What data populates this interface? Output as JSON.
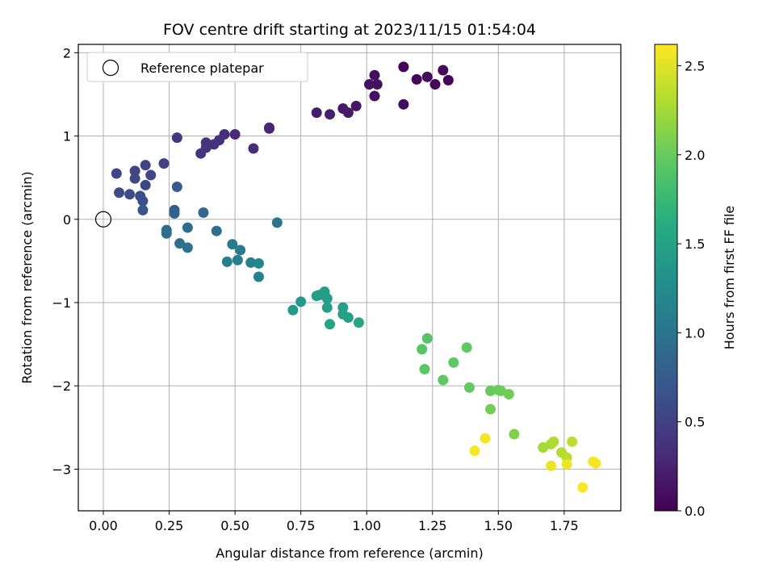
{
  "chart_data": {
    "type": "scatter",
    "title": "FOV centre drift starting at 2023/11/15 01:54:04",
    "xlabel": "Angular distance from reference (arcmin)",
    "ylabel": "Rotation from reference (arcmin)",
    "xlim": [
      -0.095,
      1.965
    ],
    "ylim": [
      -3.5,
      2.1
    ],
    "x_ticks": [
      "0.00",
      "0.25",
      "0.50",
      "0.75",
      "1.00",
      "1.25",
      "1.50",
      "1.75"
    ],
    "x_tick_values": [
      0,
      0.25,
      0.5,
      0.75,
      1.0,
      1.25,
      1.5,
      1.75
    ],
    "y_ticks": [
      "−3",
      "−2",
      "−1",
      "0",
      "1",
      "2"
    ],
    "y_tick_values": [
      -3,
      -2,
      -1,
      0,
      1,
      2
    ],
    "grid": true,
    "legend": {
      "position": "top-left",
      "label": "Reference platepar"
    },
    "reference_point": {
      "x": 0,
      "y": 0
    },
    "colorbar": {
      "label": "Hours from first FF file",
      "colormap": "viridis",
      "range": [
        0,
        2.62
      ],
      "ticks": [
        "0.0",
        "0.5",
        "1.0",
        "1.5",
        "2.0",
        "2.5"
      ],
      "tick_values": [
        0,
        0.5,
        1.0,
        1.5,
        2.0,
        2.5
      ]
    },
    "points": [
      {
        "x": 1.14,
        "y": 1.83,
        "c": 0.03
      },
      {
        "x": 1.19,
        "y": 1.68,
        "c": 0.06
      },
      {
        "x": 1.23,
        "y": 1.71,
        "c": 0.08
      },
      {
        "x": 1.26,
        "y": 1.62,
        "c": 0.05
      },
      {
        "x": 1.29,
        "y": 1.79,
        "c": 0.07
      },
      {
        "x": 1.31,
        "y": 1.67,
        "c": 0.04
      },
      {
        "x": 1.03,
        "y": 1.73,
        "c": 0.1
      },
      {
        "x": 1.01,
        "y": 1.62,
        "c": 0.12
      },
      {
        "x": 1.04,
        "y": 1.62,
        "c": 0.11
      },
      {
        "x": 1.03,
        "y": 1.48,
        "c": 0.13
      },
      {
        "x": 1.14,
        "y": 1.38,
        "c": 0.09
      },
      {
        "x": 0.96,
        "y": 1.36,
        "c": 0.15
      },
      {
        "x": 0.91,
        "y": 1.33,
        "c": 0.17
      },
      {
        "x": 0.93,
        "y": 1.28,
        "c": 0.18
      },
      {
        "x": 0.81,
        "y": 1.28,
        "c": 0.2
      },
      {
        "x": 0.86,
        "y": 1.26,
        "c": 0.22
      },
      {
        "x": 0.63,
        "y": 1.09,
        "c": 0.27
      },
      {
        "x": 0.63,
        "y": 1.1,
        "c": 0.28
      },
      {
        "x": 0.5,
        "y": 1.02,
        "c": 0.31
      },
      {
        "x": 0.46,
        "y": 1.02,
        "c": 0.33
      },
      {
        "x": 0.44,
        "y": 0.95,
        "c": 0.35
      },
      {
        "x": 0.42,
        "y": 0.9,
        "c": 0.36
      },
      {
        "x": 0.39,
        "y": 0.92,
        "c": 0.37
      },
      {
        "x": 0.39,
        "y": 0.86,
        "c": 0.38
      },
      {
        "x": 0.37,
        "y": 0.79,
        "c": 0.39
      },
      {
        "x": 0.57,
        "y": 0.85,
        "c": 0.34
      },
      {
        "x": 0.28,
        "y": 0.98,
        "c": 0.41
      },
      {
        "x": 0.23,
        "y": 0.67,
        "c": 0.5
      },
      {
        "x": 0.16,
        "y": 0.65,
        "c": 0.52
      },
      {
        "x": 0.12,
        "y": 0.58,
        "c": 0.53
      },
      {
        "x": 0.05,
        "y": 0.55,
        "c": 0.55
      },
      {
        "x": 0.18,
        "y": 0.53,
        "c": 0.54
      },
      {
        "x": 0.12,
        "y": 0.49,
        "c": 0.56
      },
      {
        "x": 0.16,
        "y": 0.41,
        "c": 0.57
      },
      {
        "x": 0.06,
        "y": 0.32,
        "c": 0.59
      },
      {
        "x": 0.1,
        "y": 0.3,
        "c": 0.6
      },
      {
        "x": 0.14,
        "y": 0.28,
        "c": 0.61
      },
      {
        "x": 0.15,
        "y": 0.22,
        "c": 0.62
      },
      {
        "x": 0.15,
        "y": 0.11,
        "c": 0.7
      },
      {
        "x": 0.28,
        "y": 0.39,
        "c": 0.75
      },
      {
        "x": 0.27,
        "y": 0.11,
        "c": 0.78
      },
      {
        "x": 0.27,
        "y": 0.07,
        "c": 0.8
      },
      {
        "x": 0.38,
        "y": 0.08,
        "c": 0.88
      },
      {
        "x": 0.24,
        "y": -0.13,
        "c": 0.9
      },
      {
        "x": 0.24,
        "y": -0.17,
        "c": 0.92
      },
      {
        "x": 0.32,
        "y": -0.1,
        "c": 0.93
      },
      {
        "x": 0.29,
        "y": -0.29,
        "c": 0.96
      },
      {
        "x": 0.32,
        "y": -0.34,
        "c": 0.98
      },
      {
        "x": 0.43,
        "y": -0.14,
        "c": 0.94
      },
      {
        "x": 0.66,
        "y": -0.04,
        "c": 1.0
      },
      {
        "x": 0.49,
        "y": -0.3,
        "c": 1.05
      },
      {
        "x": 0.52,
        "y": -0.37,
        "c": 1.07
      },
      {
        "x": 0.47,
        "y": -0.51,
        "c": 1.1
      },
      {
        "x": 0.51,
        "y": -0.49,
        "c": 1.12
      },
      {
        "x": 0.56,
        "y": -0.52,
        "c": 1.14
      },
      {
        "x": 0.59,
        "y": -0.53,
        "c": 1.18
      },
      {
        "x": 0.59,
        "y": -0.69,
        "c": 1.13
      },
      {
        "x": 0.75,
        "y": -0.99,
        "c": 1.4
      },
      {
        "x": 0.72,
        "y": -1.09,
        "c": 1.42
      },
      {
        "x": 0.81,
        "y": -0.92,
        "c": 1.43
      },
      {
        "x": 0.82,
        "y": -0.91,
        "c": 1.44
      },
      {
        "x": 0.84,
        "y": -0.87,
        "c": 1.45
      },
      {
        "x": 0.85,
        "y": -0.95,
        "c": 1.46
      },
      {
        "x": 0.85,
        "y": -1.06,
        "c": 1.47
      },
      {
        "x": 0.91,
        "y": -1.06,
        "c": 1.48
      },
      {
        "x": 0.91,
        "y": -1.14,
        "c": 1.49
      },
      {
        "x": 0.93,
        "y": -1.18,
        "c": 1.5
      },
      {
        "x": 0.86,
        "y": -1.26,
        "c": 1.52
      },
      {
        "x": 0.97,
        "y": -1.24,
        "c": 1.53
      },
      {
        "x": 1.23,
        "y": -1.43,
        "c": 1.9
      },
      {
        "x": 1.21,
        "y": -1.56,
        "c": 1.92
      },
      {
        "x": 1.22,
        "y": -1.8,
        "c": 1.94
      },
      {
        "x": 1.29,
        "y": -1.93,
        "c": 1.95
      },
      {
        "x": 1.33,
        "y": -1.72,
        "c": 1.96
      },
      {
        "x": 1.38,
        "y": -1.54,
        "c": 1.97
      },
      {
        "x": 1.39,
        "y": -2.02,
        "c": 1.98
      },
      {
        "x": 1.47,
        "y": -2.06,
        "c": 2.0
      },
      {
        "x": 1.5,
        "y": -2.05,
        "c": 2.01
      },
      {
        "x": 1.51,
        "y": -2.06,
        "c": 2.02
      },
      {
        "x": 1.54,
        "y": -2.1,
        "c": 2.03
      },
      {
        "x": 1.47,
        "y": -2.28,
        "c": 2.04
      },
      {
        "x": 1.56,
        "y": -2.58,
        "c": 2.1
      },
      {
        "x": 1.67,
        "y": -2.74,
        "c": 2.25
      },
      {
        "x": 1.7,
        "y": -2.7,
        "c": 2.28
      },
      {
        "x": 1.71,
        "y": -2.67,
        "c": 2.3
      },
      {
        "x": 1.74,
        "y": -2.8,
        "c": 2.32
      },
      {
        "x": 1.76,
        "y": -2.86,
        "c": 2.34
      },
      {
        "x": 1.78,
        "y": -2.67,
        "c": 2.36
      },
      {
        "x": 1.7,
        "y": -2.96,
        "c": 2.55
      },
      {
        "x": 1.76,
        "y": -2.94,
        "c": 2.56
      },
      {
        "x": 1.45,
        "y": -2.63,
        "c": 2.58
      },
      {
        "x": 1.41,
        "y": -2.78,
        "c": 2.6
      },
      {
        "x": 1.82,
        "y": -3.22,
        "c": 2.61
      },
      {
        "x": 1.86,
        "y": -2.91,
        "c": 2.59
      },
      {
        "x": 1.87,
        "y": -2.93,
        "c": 2.6
      }
    ]
  }
}
